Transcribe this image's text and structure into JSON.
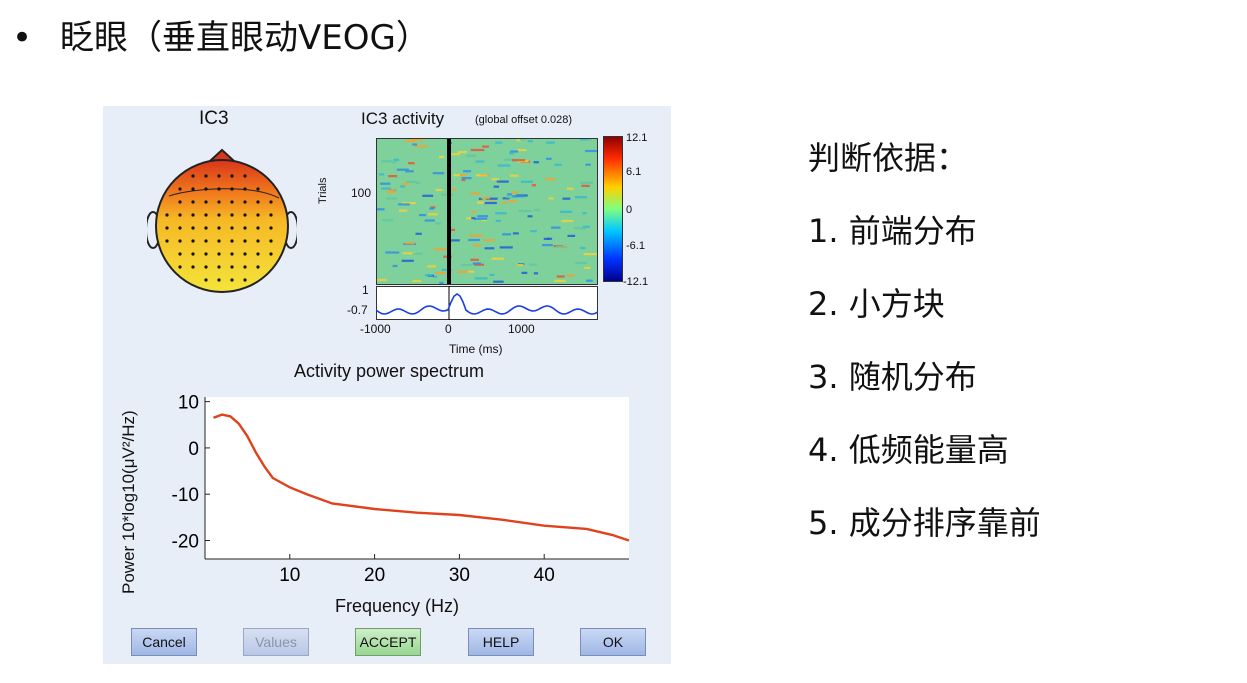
{
  "slide": {
    "bullet": "•",
    "title": "眨眼（垂直眼动VEOG）"
  },
  "window": {
    "topo_title": "IC3",
    "erp_title": "IC3 activity",
    "erp_subtitle": "(global offset 0.028)",
    "trials_label": "Trials",
    "trials_tick": "100",
    "colorbar_ticks": [
      "12.1",
      "6.1",
      "0",
      "-6.1",
      "-12.1"
    ],
    "erp_yticks": [
      "1",
      "-0.7"
    ],
    "erp_xticks": [
      "-1000",
      "0",
      "1000"
    ],
    "erp_xlabel": "Time (ms)",
    "spectrum_title": "Activity power spectrum",
    "spectrum_ylabel": "Power 10*log10(μV²/Hz)",
    "spectrum_xlabel": "Frequency (Hz)",
    "buttons": {
      "cancel": "Cancel",
      "values": "Values",
      "accept": "ACCEPT",
      "help": "HELP",
      "ok": "OK"
    },
    "colors": {
      "spectrum_line": "#e0421c",
      "erp_line": "#1a3fe0",
      "panel_bg": "#e8eef8"
    }
  },
  "chart_data": {
    "type": "line",
    "title": "Activity power spectrum",
    "xlabel": "Frequency (Hz)",
    "ylabel": "Power 10*log10(μV²/Hz)",
    "xlim": [
      0,
      50
    ],
    "ylim": [
      -24,
      11
    ],
    "xticks": [
      10,
      20,
      30,
      40
    ],
    "yticks": [
      10,
      0,
      -10,
      -20
    ],
    "x": [
      1,
      2,
      3,
      4,
      5,
      6,
      7,
      8,
      10,
      12,
      15,
      20,
      25,
      30,
      35,
      40,
      45,
      48,
      50
    ],
    "y": [
      6.5,
      7.2,
      6.8,
      5.2,
      2.5,
      -1.0,
      -4.0,
      -6.5,
      -8.5,
      -10.0,
      -12.0,
      -13.2,
      -14.0,
      -14.5,
      -15.5,
      -16.8,
      -17.5,
      -18.8,
      -20.0
    ]
  },
  "criteria": {
    "heading": "判断依据：",
    "items": [
      "1. 前端分布",
      "2. 小方块",
      "3. 随机分布",
      "4. 低频能量高",
      "5. 成分排序靠前"
    ]
  }
}
